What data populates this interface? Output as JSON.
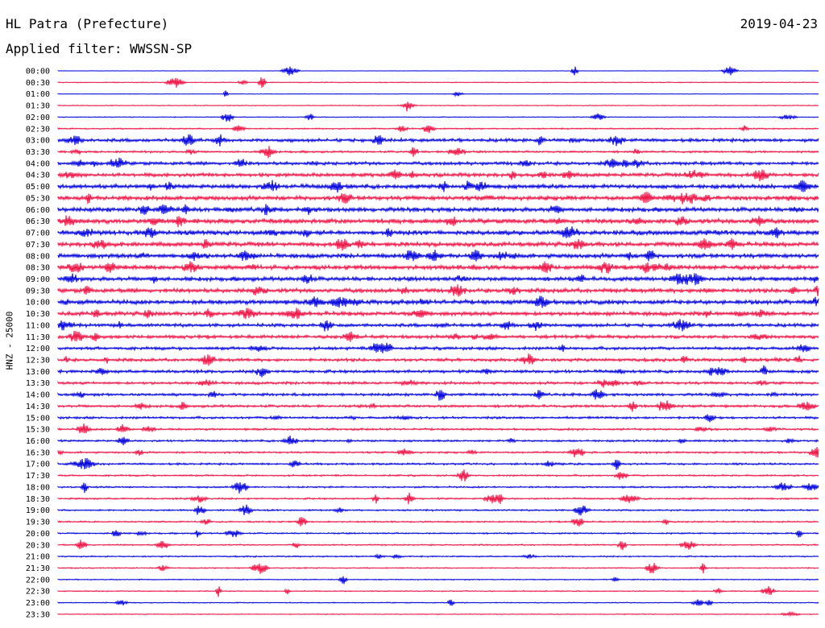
{
  "header": {
    "station": "HL Patra (Prefecture)",
    "date": "2019-04-23",
    "filter": "Applied filter: WWSSN-SP"
  },
  "chart_data": {
    "type": "line",
    "title": "HL Patra (Prefecture)",
    "ylabel": "HNZ - 25000",
    "row_labels": [
      "00:00",
      "00:30",
      "01:00",
      "01:30",
      "02:00",
      "02:30",
      "03:00",
      "03:30",
      "04:00",
      "04:30",
      "05:00",
      "05:30",
      "06:00",
      "06:30",
      "07:00",
      "07:30",
      "08:00",
      "08:30",
      "09:00",
      "09:30",
      "10:00",
      "10:30",
      "11:00",
      "11:30",
      "12:00",
      "12:30",
      "13:00",
      "13:30",
      "14:00",
      "14:30",
      "15:00",
      "15:30",
      "16:00",
      "16:30",
      "17:00",
      "17:30",
      "18:00",
      "18:30",
      "19:00",
      "19:30",
      "20:00",
      "20:30",
      "21:00",
      "21:30",
      "22:00",
      "22:30",
      "23:00",
      "23:30"
    ],
    "colors": [
      "#0000dd",
      "#ee1144"
    ],
    "noise_level": [
      0.2,
      0.5,
      0.3,
      0.5,
      0.5,
      0.8,
      2.0,
      1.2,
      2.0,
      2.2,
      2.5,
      2.6,
      2.6,
      2.8,
      2.8,
      2.6,
      2.6,
      2.6,
      2.5,
      2.5,
      2.6,
      2.4,
      2.0,
      2.0,
      1.8,
      1.8,
      1.8,
      1.6,
      1.6,
      1.6,
      1.4,
      1.2,
      1.2,
      1.1,
      1.2,
      1.0,
      1.0,
      1.0,
      1.0,
      0.9,
      0.9,
      0.8,
      0.8,
      0.7,
      0.6,
      0.6,
      0.6,
      0.5
    ]
  }
}
